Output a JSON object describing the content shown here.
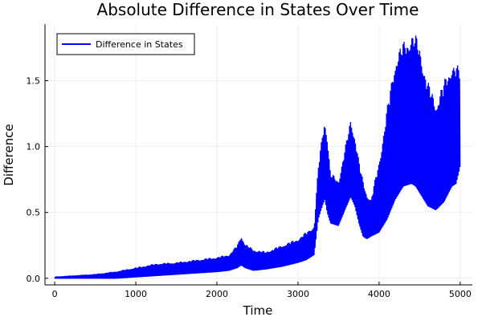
{
  "chart_data": {
    "type": "line",
    "title": "Absolute Difference in States Over Time",
    "xlabel": "Time",
    "ylabel": "Difference",
    "xlim": [
      -120,
      5150
    ],
    "ylim": [
      -0.05,
      1.93
    ],
    "x_ticks": [
      0,
      1000,
      2000,
      3000,
      4000,
      5000
    ],
    "x_tick_labels": [
      "0",
      "1000",
      "2000",
      "3000",
      "4000",
      "5000"
    ],
    "y_ticks": [
      0.0,
      0.5,
      1.0,
      1.5
    ],
    "y_tick_labels": [
      "0.0",
      "0.5",
      "1.0",
      "1.5"
    ],
    "grid": true,
    "legend_position": "top-left",
    "series": [
      {
        "name": "Difference in States",
        "color": "#0000ff",
        "envelope_x": [
          0,
          250,
          500,
          750,
          1000,
          1250,
          1500,
          1750,
          2000,
          2150,
          2250,
          2300,
          2350,
          2450,
          2600,
          2800,
          3000,
          3100,
          3200,
          3250,
          3300,
          3330,
          3360,
          3400,
          3500,
          3600,
          3650,
          3700,
          3750,
          3800,
          3850,
          3900,
          4000,
          4100,
          4200,
          4300,
          4400,
          4450,
          4500,
          4600,
          4700,
          4800,
          4900,
          4950,
          5000
        ],
        "envelope_max": [
          0.01,
          0.02,
          0.03,
          0.05,
          0.08,
          0.11,
          0.12,
          0.14,
          0.16,
          0.18,
          0.25,
          0.33,
          0.26,
          0.22,
          0.2,
          0.25,
          0.3,
          0.35,
          0.4,
          0.85,
          1.1,
          1.23,
          1.1,
          0.8,
          0.75,
          1.05,
          1.22,
          1.1,
          0.9,
          0.75,
          0.65,
          0.6,
          0.9,
          1.3,
          1.7,
          1.8,
          1.88,
          1.85,
          1.78,
          1.5,
          1.35,
          1.5,
          1.65,
          1.62,
          1.6
        ],
        "envelope_min": [
          0.0,
          0.0,
          0.0,
          0.0,
          0.01,
          0.02,
          0.03,
          0.04,
          0.05,
          0.06,
          0.08,
          0.1,
          0.08,
          0.06,
          0.07,
          0.09,
          0.12,
          0.14,
          0.18,
          0.45,
          0.55,
          0.6,
          0.5,
          0.42,
          0.4,
          0.55,
          0.62,
          0.55,
          0.42,
          0.32,
          0.3,
          0.32,
          0.35,
          0.45,
          0.6,
          0.7,
          0.72,
          0.7,
          0.65,
          0.55,
          0.52,
          0.58,
          0.7,
          0.72,
          0.85
        ]
      }
    ]
  }
}
